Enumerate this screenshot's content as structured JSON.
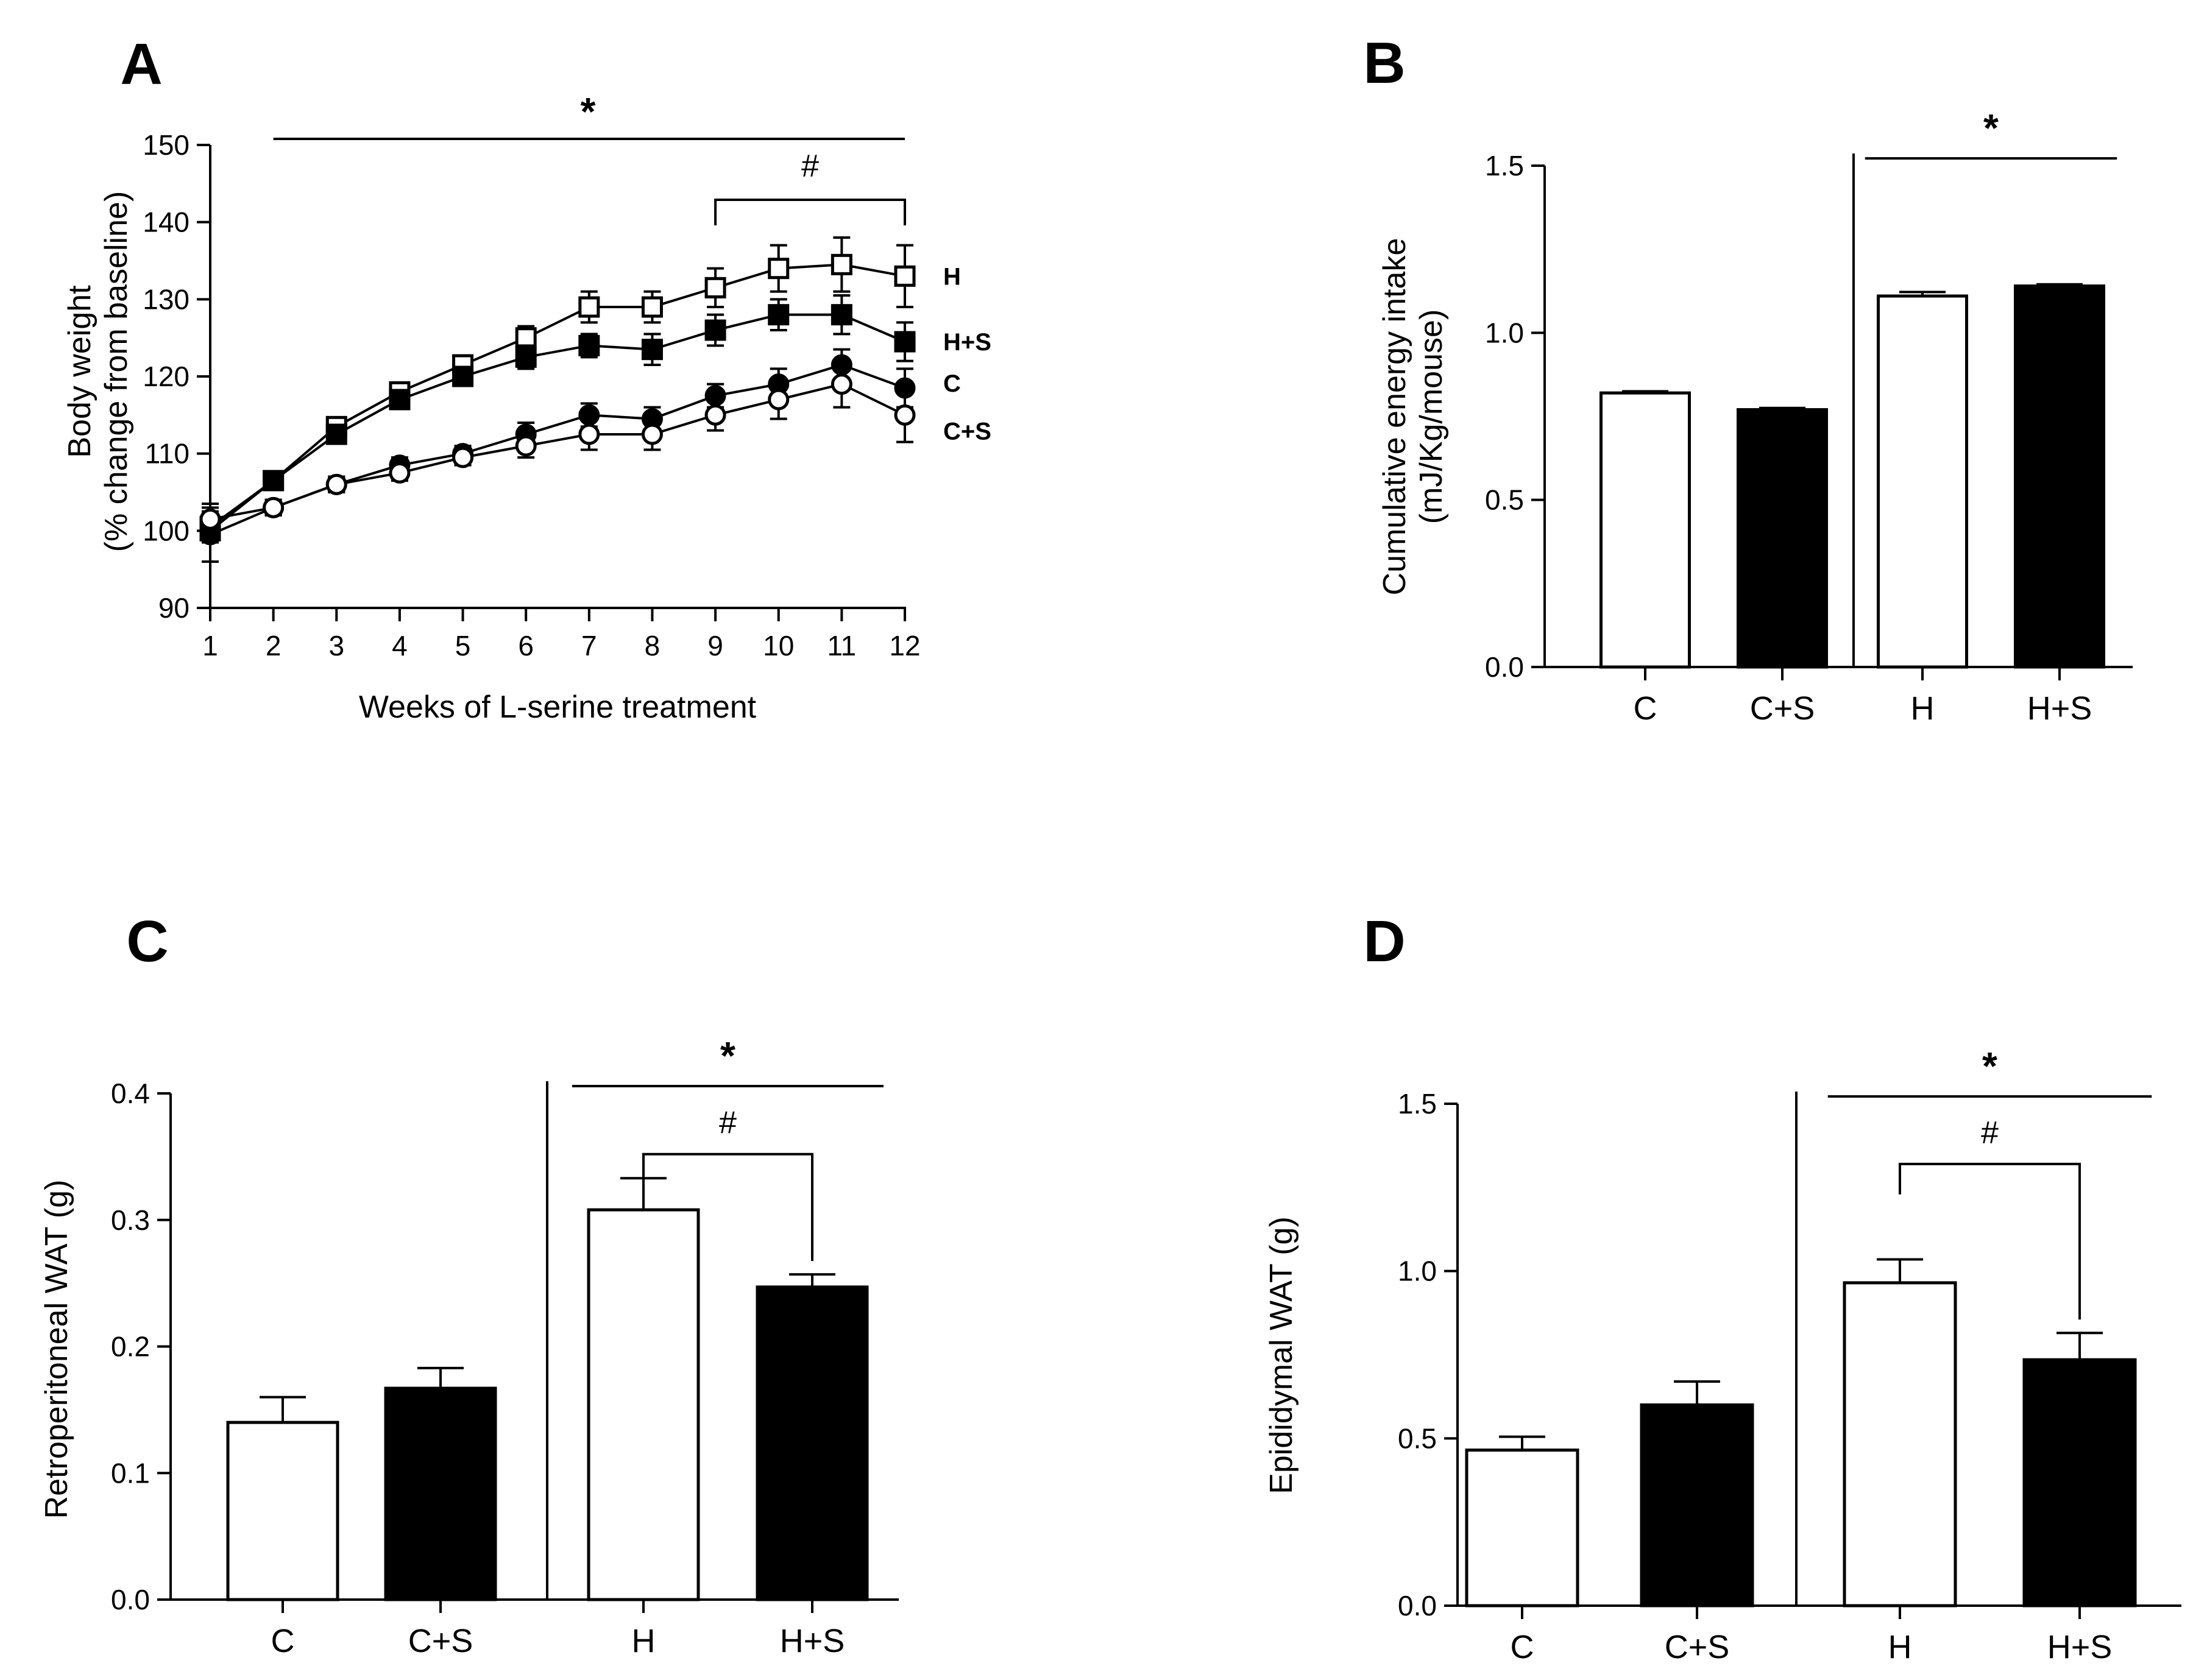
{
  "colors": {
    "ink": "#000000",
    "paper": "#ffffff"
  },
  "chart_data": [
    {
      "panel": "A",
      "type": "line",
      "title": "",
      "xlabel": "Weeks of L-serine treatment",
      "ylabel_lines": [
        "Body weight",
        "(% change from baseline)"
      ],
      "ylim": [
        90,
        150
      ],
      "yticks": [
        "90",
        "100",
        "110",
        "120",
        "130",
        "140",
        "150"
      ],
      "x": [
        1,
        2,
        3,
        4,
        5,
        6,
        7,
        8,
        9,
        10,
        11,
        12
      ],
      "xticks": [
        "1",
        "2",
        "3",
        "4",
        "5",
        "6",
        "7",
        "8",
        "9",
        "10",
        "11",
        "12"
      ],
      "series": [
        {
          "name": "H",
          "marker": "open-square",
          "values": [
            100.5,
            106.5,
            113.5,
            118.0,
            121.5,
            125.0,
            129.0,
            129.0,
            131.5,
            134.0,
            134.5,
            133.0
          ],
          "errors": [
            2.0,
            1.0,
            1.0,
            1.0,
            1.0,
            1.5,
            2.0,
            2.0,
            2.5,
            3.0,
            3.5,
            4.0
          ]
        },
        {
          "name": "H+S",
          "marker": "filled-square",
          "values": [
            100.0,
            106.5,
            112.5,
            117.0,
            120.0,
            122.5,
            124.0,
            123.5,
            126.0,
            128.0,
            128.0,
            124.5
          ],
          "errors": [
            1.5,
            1.0,
            1.0,
            1.0,
            1.0,
            1.5,
            1.5,
            2.0,
            2.0,
            2.0,
            2.5,
            2.5
          ]
        },
        {
          "name": "C",
          "marker": "filled-circle",
          "values": [
            99.5,
            103.0,
            106.0,
            108.5,
            110.0,
            112.5,
            115.0,
            114.5,
            117.5,
            119.0,
            121.5,
            118.5
          ],
          "errors": [
            3.5,
            1.0,
            1.0,
            1.0,
            1.0,
            1.5,
            1.5,
            1.5,
            1.5,
            2.0,
            2.0,
            2.5
          ]
        },
        {
          "name": "C+S",
          "marker": "open-circle",
          "values": [
            101.5,
            103.0,
            106.0,
            107.5,
            109.5,
            111.0,
            112.5,
            112.5,
            115.0,
            117.0,
            119.0,
            115.0
          ],
          "errors": [
            2.0,
            1.0,
            1.0,
            1.0,
            1.0,
            1.5,
            2.0,
            2.0,
            2.0,
            2.5,
            3.0,
            3.5
          ]
        }
      ],
      "annotations": [
        {
          "text": "*",
          "type": "line",
          "from_x": 2,
          "to_x": 12
        },
        {
          "text": "#",
          "type": "bracket",
          "from_x": 9,
          "to_x": 12
        }
      ]
    },
    {
      "panel": "B",
      "type": "bar",
      "title": "",
      "xlabel": "",
      "ylabel_lines": [
        "Cumulative energy intake",
        "(mJ/Kg/mouse)"
      ],
      "ylim": [
        0.0,
        1.5
      ],
      "yticks": [
        "0.0",
        "0.5",
        "1.0",
        "1.5"
      ],
      "categories": [
        "C",
        "C+S",
        "H",
        "H+S"
      ],
      "fills": [
        "open",
        "filled",
        "open",
        "filled"
      ],
      "values": [
        0.82,
        0.77,
        1.11,
        1.14
      ],
      "errors": [
        0.005,
        0.005,
        0.012,
        0.005
      ],
      "annotations": [
        {
          "text": "*",
          "type": "line",
          "from_cat": 2,
          "to_cat": 3
        }
      ]
    },
    {
      "panel": "C",
      "type": "bar",
      "title": "",
      "xlabel": "",
      "ylabel_lines": [
        "Retroperitoneal WAT (g)"
      ],
      "ylim": [
        0.0,
        0.4
      ],
      "yticks": [
        "0.0",
        "0.1",
        "0.2",
        "0.3",
        "0.4"
      ],
      "categories": [
        "C",
        "C+S",
        "H",
        "H+S"
      ],
      "fills": [
        "open",
        "filled",
        "open",
        "filled"
      ],
      "values": [
        0.14,
        0.167,
        0.308,
        0.247
      ],
      "errors": [
        0.02,
        0.016,
        0.025,
        0.01
      ],
      "annotations": [
        {
          "text": "*",
          "type": "line",
          "from_cat": 2,
          "to_cat": 3
        },
        {
          "text": "#",
          "type": "bracket",
          "from_cat": 2,
          "to_cat": 3
        }
      ]
    },
    {
      "panel": "D",
      "type": "bar",
      "title": "",
      "xlabel": "",
      "ylabel_lines": [
        "Epididymal WAT (g)"
      ],
      "ylim": [
        0.0,
        1.5
      ],
      "yticks": [
        "0.0",
        "0.5",
        "1.0",
        "1.5"
      ],
      "categories": [
        "C",
        "C+S",
        "H",
        "H+S"
      ],
      "fills": [
        "open",
        "filled",
        "open",
        "filled"
      ],
      "values": [
        0.465,
        0.6,
        0.965,
        0.735
      ],
      "errors": [
        0.04,
        0.07,
        0.07,
        0.08
      ],
      "annotations": [
        {
          "text": "*",
          "type": "line",
          "from_cat": 2,
          "to_cat": 3
        },
        {
          "text": "#",
          "type": "bracket",
          "from_cat": 2,
          "to_cat": 3
        }
      ]
    }
  ]
}
